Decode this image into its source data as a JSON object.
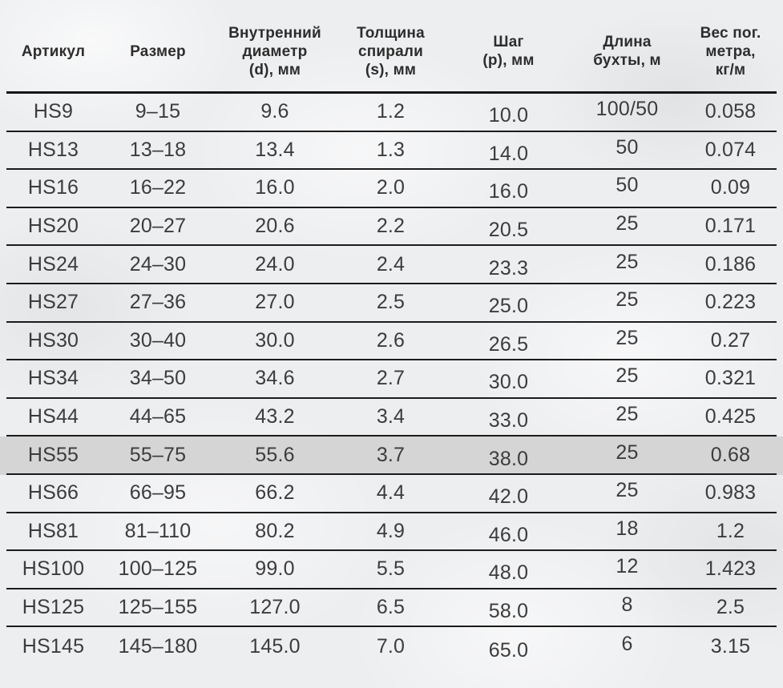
{
  "colors": {
    "background": "#edeef0",
    "divider_line": "#1c1c1c",
    "header_separator_line": "#161616",
    "cell_text": "#3c3c3c",
    "header_text": "#2d2d2d",
    "highlight_row_background": "#d5d5d6"
  },
  "table": {
    "columns": [
      {
        "key": "article",
        "lines": [
          "Артикул"
        ]
      },
      {
        "key": "size",
        "lines": [
          "Размер"
        ]
      },
      {
        "key": "inner_diameter",
        "lines": [
          "Внутренний",
          "диаметр",
          "(d), мм"
        ]
      },
      {
        "key": "spiral_thickness",
        "lines": [
          "Толщина",
          "спирали",
          "(s), мм"
        ]
      },
      {
        "key": "pitch",
        "lines": [
          "Шаг",
          "(p), мм"
        ]
      },
      {
        "key": "coil_length",
        "lines": [
          "Длина",
          "бухты, м"
        ]
      },
      {
        "key": "weight_per_meter",
        "lines": [
          "Вес пог.",
          "метра,",
          "кг/м"
        ]
      }
    ],
    "highlighted_article": "HS55",
    "rows": [
      {
        "article": "HS9",
        "size": "9–15",
        "inner_diameter": "9.6",
        "spiral_thickness": "1.2",
        "pitch": "10.0",
        "coil_length": "100/50",
        "weight_per_meter": "0.058"
      },
      {
        "article": "HS13",
        "size": "13–18",
        "inner_diameter": "13.4",
        "spiral_thickness": "1.3",
        "pitch": "14.0",
        "coil_length": "50",
        "weight_per_meter": "0.074"
      },
      {
        "article": "HS16",
        "size": "16–22",
        "inner_diameter": "16.0",
        "spiral_thickness": "2.0",
        "pitch": "16.0",
        "coil_length": "50",
        "weight_per_meter": "0.09"
      },
      {
        "article": "HS20",
        "size": "20–27",
        "inner_diameter": "20.6",
        "spiral_thickness": "2.2",
        "pitch": "20.5",
        "coil_length": "25",
        "weight_per_meter": "0.171"
      },
      {
        "article": "HS24",
        "size": "24–30",
        "inner_diameter": "24.0",
        "spiral_thickness": "2.4",
        "pitch": "23.3",
        "coil_length": "25",
        "weight_per_meter": "0.186"
      },
      {
        "article": "HS27",
        "size": "27–36",
        "inner_diameter": "27.0",
        "spiral_thickness": "2.5",
        "pitch": "25.0",
        "coil_length": "25",
        "weight_per_meter": "0.223"
      },
      {
        "article": "HS30",
        "size": "30–40",
        "inner_diameter": "30.0",
        "spiral_thickness": "2.6",
        "pitch": "26.5",
        "coil_length": "25",
        "weight_per_meter": "0.27"
      },
      {
        "article": "HS34",
        "size": "34–50",
        "inner_diameter": "34.6",
        "spiral_thickness": "2.7",
        "pitch": "30.0",
        "coil_length": "25",
        "weight_per_meter": "0.321"
      },
      {
        "article": "HS44",
        "size": "44–65",
        "inner_diameter": "43.2",
        "spiral_thickness": "3.4",
        "pitch": "33.0",
        "coil_length": "25",
        "weight_per_meter": "0.425"
      },
      {
        "article": "HS55",
        "size": "55–75",
        "inner_diameter": "55.6",
        "spiral_thickness": "3.7",
        "pitch": "38.0",
        "coil_length": "25",
        "weight_per_meter": "0.68"
      },
      {
        "article": "HS66",
        "size": "66–95",
        "inner_diameter": "66.2",
        "spiral_thickness": "4.4",
        "pitch": "42.0",
        "coil_length": "25",
        "weight_per_meter": "0.983"
      },
      {
        "article": "HS81",
        "size": "81–110",
        "inner_diameter": "80.2",
        "spiral_thickness": "4.9",
        "pitch": "46.0",
        "coil_length": "18",
        "weight_per_meter": "1.2"
      },
      {
        "article": "HS100",
        "size": "100–125",
        "inner_diameter": "99.0",
        "spiral_thickness": "5.5",
        "pitch": "48.0",
        "coil_length": "12",
        "weight_per_meter": "1.423"
      },
      {
        "article": "HS125",
        "size": "125–155",
        "inner_diameter": "127.0",
        "spiral_thickness": "6.5",
        "pitch": "58.0",
        "coil_length": "8",
        "weight_per_meter": "2.5"
      },
      {
        "article": "HS145",
        "size": "145–180",
        "inner_diameter": "145.0",
        "spiral_thickness": "7.0",
        "pitch": "65.0",
        "coil_length": "6",
        "weight_per_meter": "3.15"
      }
    ]
  },
  "chart_data": {
    "type": "table",
    "columns": [
      "Артикул",
      "Размер",
      "Внутренний диаметр (d), мм",
      "Толщина спирали (s), мм",
      "Шаг (p), мм",
      "Длина бухты, м",
      "Вес пог. метра, кг/м"
    ],
    "rows": [
      [
        "HS9",
        "9–15",
        "9.6",
        "1.2",
        "10.0",
        "100/50",
        "0.058"
      ],
      [
        "HS13",
        "13–18",
        "13.4",
        "1.3",
        "14.0",
        "50",
        "0.074"
      ],
      [
        "HS16",
        "16–22",
        "16.0",
        "2.0",
        "16.0",
        "50",
        "0.09"
      ],
      [
        "HS20",
        "20–27",
        "20.6",
        "2.2",
        "20.5",
        "25",
        "0.171"
      ],
      [
        "HS24",
        "24–30",
        "24.0",
        "2.4",
        "23.3",
        "25",
        "0.186"
      ],
      [
        "HS27",
        "27–36",
        "27.0",
        "2.5",
        "25.0",
        "25",
        "0.223"
      ],
      [
        "HS30",
        "30–40",
        "30.0",
        "2.6",
        "26.5",
        "25",
        "0.27"
      ],
      [
        "HS34",
        "34–50",
        "34.6",
        "2.7",
        "30.0",
        "25",
        "0.321"
      ],
      [
        "HS44",
        "44–65",
        "43.2",
        "3.4",
        "33.0",
        "25",
        "0.425"
      ],
      [
        "HS55",
        "55–75",
        "55.6",
        "3.7",
        "38.0",
        "25",
        "0.68"
      ],
      [
        "HS66",
        "66–95",
        "66.2",
        "4.4",
        "42.0",
        "25",
        "0.983"
      ],
      [
        "HS81",
        "81–110",
        "80.2",
        "4.9",
        "46.0",
        "18",
        "1.2"
      ],
      [
        "HS100",
        "100–125",
        "99.0",
        "5.5",
        "48.0",
        "12",
        "1.423"
      ],
      [
        "HS125",
        "125–155",
        "127.0",
        "6.5",
        "58.0",
        "8",
        "2.5"
      ],
      [
        "HS145",
        "145–180",
        "145.0",
        "7.0",
        "65.0",
        "6",
        "3.15"
      ]
    ],
    "highlighted_row": "HS55"
  }
}
